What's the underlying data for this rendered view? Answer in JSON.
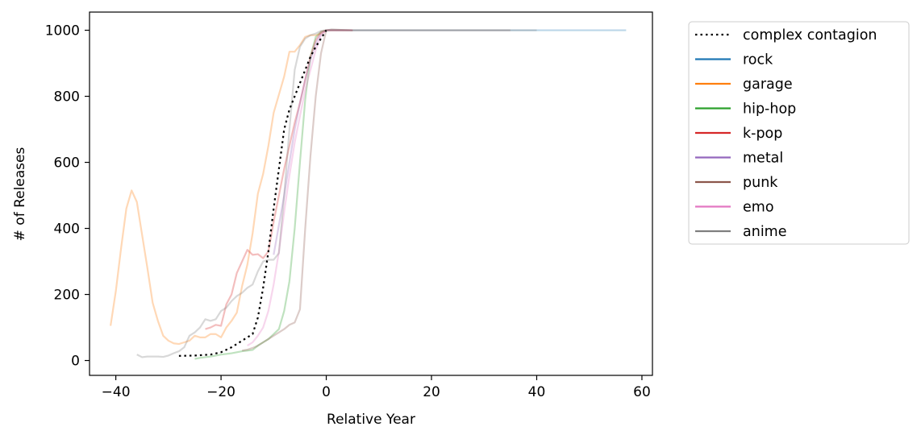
{
  "chart_data": {
    "type": "line",
    "xlabel": "Relative Year",
    "ylabel": "# of Releases",
    "xlim": [
      -45,
      62
    ],
    "ylim": [
      -45,
      1055
    ],
    "xticks": [
      -40,
      -20,
      0,
      20,
      40,
      60
    ],
    "yticks": [
      0,
      200,
      400,
      600,
      800,
      1000
    ],
    "xtick_labels": [
      "−40",
      "−20",
      "0",
      "20",
      "40",
      "60"
    ],
    "ytick_labels": [
      "0",
      "200",
      "400",
      "600",
      "800",
      "1000"
    ],
    "grid": false,
    "legend_position": "outside right, top",
    "legend": [
      "complex contagion",
      "rock",
      "garage",
      "hip-hop",
      "k-pop",
      "metal",
      "punk",
      "emo",
      "anime"
    ],
    "series": [
      {
        "name": "complex contagion",
        "color": "#000000",
        "style": "dotted",
        "opacity": 1,
        "x": [
          -28,
          -25,
          -22,
          -20,
          -18,
          -16,
          -14,
          -13,
          -12,
          -11,
          -10,
          -9,
          -8,
          -7,
          -6,
          -5,
          -4,
          -3,
          -2,
          -1,
          0
        ],
        "y": [
          14,
          15,
          18,
          25,
          40,
          60,
          80,
          130,
          220,
          330,
          460,
          580,
          700,
          760,
          800,
          840,
          880,
          920,
          950,
          975,
          1000
        ]
      },
      {
        "name": "rock",
        "color": "#1f77b4",
        "style": "solid",
        "opacity": 0.3,
        "x": [
          0,
          10,
          20,
          30,
          40,
          50,
          57
        ],
        "y": [
          1000,
          1000,
          1000,
          1000,
          1000,
          1000,
          1000
        ]
      },
      {
        "name": "garage",
        "color": "#ff7f0e",
        "style": "solid",
        "opacity": 0.3,
        "x": [
          -41,
          -40,
          -39,
          -38,
          -37,
          -36,
          -35,
          -34,
          -33,
          -32,
          -31,
          -30,
          -29,
          -28,
          -27,
          -26,
          -25,
          -24,
          -23,
          -22,
          -21,
          -20,
          -19,
          -18,
          -17,
          -16,
          -15,
          -14,
          -13,
          -12,
          -11,
          -10,
          -9,
          -8,
          -7,
          -6,
          -5,
          -4,
          -3,
          -2,
          -1,
          0,
          1,
          5
        ],
        "y": [
          105,
          210,
          340,
          460,
          515,
          480,
          380,
          280,
          175,
          120,
          75,
          60,
          52,
          50,
          55,
          60,
          75,
          70,
          70,
          80,
          80,
          70,
          100,
          120,
          145,
          225,
          290,
          385,
          505,
          565,
          650,
          750,
          805,
          860,
          935,
          935,
          955,
          980,
          985,
          985,
          990,
          1000,
          1000,
          1000
        ]
      },
      {
        "name": "hip-hop",
        "color": "#2ca02c",
        "style": "solid",
        "opacity": 0.3,
        "x": [
          -25,
          -24,
          -23,
          -22,
          -21,
          -20,
          -19,
          -18,
          -17,
          -16,
          -15,
          -14,
          -13,
          -12,
          -11,
          -10,
          -9,
          -8,
          -7,
          -6,
          -5,
          -4,
          -3,
          -2,
          -1,
          0,
          1,
          5
        ],
        "y": [
          5,
          8,
          10,
          12,
          15,
          18,
          20,
          22,
          25,
          28,
          30,
          32,
          45,
          55,
          65,
          80,
          95,
          150,
          240,
          400,
          600,
          790,
          920,
          980,
          995,
          1000,
          1000,
          1000
        ]
      },
      {
        "name": "k-pop",
        "color": "#d62728",
        "style": "solid",
        "opacity": 0.3,
        "x": [
          -23,
          -22,
          -21,
          -20,
          -19,
          -18,
          -17,
          -16,
          -15,
          -14,
          -13,
          -12,
          -11,
          -10,
          -9,
          -8,
          -7,
          -6,
          -5,
          -4,
          -3,
          -2,
          -1,
          0,
          1,
          5
        ],
        "y": [
          95,
          100,
          108,
          105,
          170,
          200,
          265,
          300,
          335,
          320,
          322,
          310,
          330,
          420,
          500,
          580,
          650,
          720,
          780,
          850,
          920,
          970,
          995,
          1000,
          1000,
          1000
        ]
      },
      {
        "name": "metal",
        "color": "#9467bd",
        "style": "solid",
        "opacity": 0.3,
        "x": [
          -10,
          -9,
          -8,
          -7,
          -6,
          -5,
          -4,
          -3,
          -2,
          -1,
          0,
          1,
          5
        ],
        "y": [
          320,
          410,
          500,
          600,
          700,
          780,
          850,
          910,
          960,
          990,
          1000,
          1000,
          1000
        ]
      },
      {
        "name": "punk",
        "color": "#8c564b",
        "style": "solid",
        "opacity": 0.3,
        "x": [
          -16,
          -15,
          -14,
          -13,
          -12,
          -11,
          -10,
          -9,
          -8,
          -7,
          -6,
          -5,
          -4,
          -3,
          -2,
          -1,
          0,
          1,
          5,
          15,
          25,
          35
        ],
        "y": [
          30,
          33,
          38,
          45,
          55,
          65,
          75,
          85,
          95,
          108,
          115,
          155,
          400,
          620,
          800,
          930,
          1000,
          1002,
          1000,
          1000,
          1000,
          1000
        ]
      },
      {
        "name": "emo",
        "color": "#e377c2",
        "style": "solid",
        "opacity": 0.3,
        "x": [
          -15,
          -14,
          -13,
          -12,
          -11,
          -10,
          -9,
          -8,
          -7,
          -6,
          -5,
          -4,
          -3,
          -2,
          -1,
          0,
          1,
          5
        ],
        "y": [
          45,
          55,
          75,
          100,
          150,
          230,
          330,
          450,
          560,
          660,
          740,
          820,
          880,
          940,
          985,
          1000,
          1000,
          1000
        ]
      },
      {
        "name": "anime",
        "color": "#7f7f7f",
        "style": "solid",
        "opacity": 0.3,
        "x": [
          -36,
          -35,
          -34,
          -33,
          -32,
          -31,
          -30,
          -29,
          -28,
          -27,
          -26,
          -25,
          -24,
          -23,
          -22,
          -21,
          -20,
          -19,
          -18,
          -17,
          -16,
          -15,
          -14,
          -13,
          -12,
          -11,
          -10,
          -9,
          -8,
          -7,
          -6,
          -5,
          -4,
          -3,
          -2,
          -1,
          0,
          1,
          5,
          15,
          25,
          35,
          40
        ],
        "y": [
          18,
          10,
          12,
          12,
          12,
          11,
          15,
          22,
          28,
          40,
          75,
          85,
          100,
          125,
          120,
          125,
          150,
          160,
          180,
          195,
          205,
          220,
          230,
          270,
          300,
          305,
          305,
          325,
          500,
          700,
          880,
          950,
          975,
          985,
          990,
          998,
          1000,
          1002,
          1000,
          1000,
          1000,
          1000,
          1000
        ]
      }
    ]
  }
}
